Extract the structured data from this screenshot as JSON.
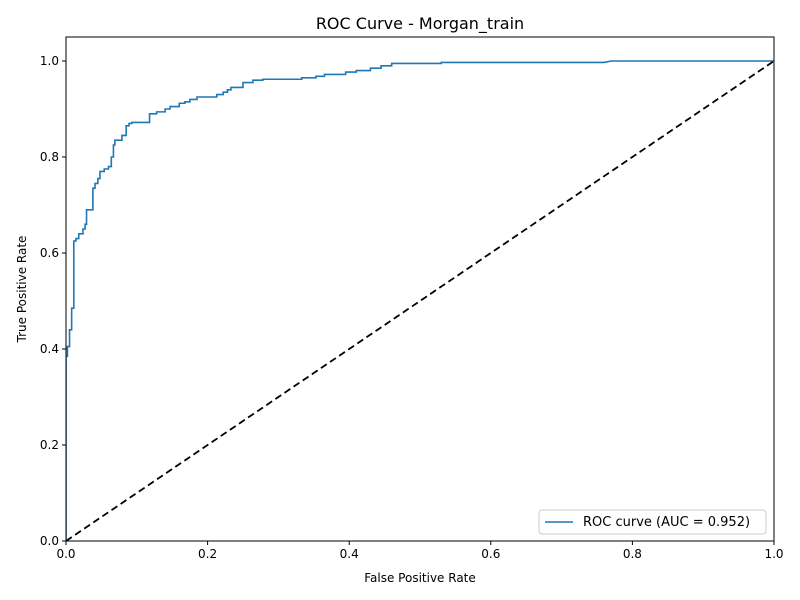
{
  "chart_data": {
    "type": "line",
    "title": "ROC Curve - Morgan_train",
    "xlabel": "False Positive Rate",
    "ylabel": "True Positive Rate",
    "xlim": [
      0.0,
      1.0
    ],
    "ylim": [
      0.0,
      1.05
    ],
    "x_ticks": [
      "0.0",
      "0.2",
      "0.4",
      "0.6",
      "0.8",
      "1.0"
    ],
    "y_ticks": [
      "0.0",
      "0.2",
      "0.4",
      "0.6",
      "0.8",
      "1.0"
    ],
    "grid": false,
    "legend": {
      "placement": "lower-right",
      "entries": [
        "ROC curve (AUC = 0.952)"
      ]
    },
    "series": [
      {
        "name": "ROC curve (AUC = 0.952)",
        "color": "#1f77b4",
        "style": "solid",
        "x": [
          0.0,
          0.0,
          0.002,
          0.002,
          0.005,
          0.005,
          0.008,
          0.008,
          0.011,
          0.011,
          0.014,
          0.014,
          0.018,
          0.018,
          0.024,
          0.024,
          0.027,
          0.027,
          0.029,
          0.029,
          0.038,
          0.038,
          0.041,
          0.041,
          0.045,
          0.045,
          0.048,
          0.048,
          0.054,
          0.054,
          0.06,
          0.06,
          0.064,
          0.064,
          0.067,
          0.067,
          0.069,
          0.069,
          0.079,
          0.079,
          0.085,
          0.085,
          0.089,
          0.089,
          0.093,
          0.093,
          0.118,
          0.118,
          0.128,
          0.128,
          0.14,
          0.14,
          0.147,
          0.147,
          0.16,
          0.16,
          0.168,
          0.168,
          0.175,
          0.175,
          0.185,
          0.185,
          0.213,
          0.213,
          0.222,
          0.222,
          0.228,
          0.228,
          0.233,
          0.233,
          0.25,
          0.25,
          0.264,
          0.264,
          0.278,
          0.278,
          0.333,
          0.333,
          0.353,
          0.353,
          0.365,
          0.365,
          0.395,
          0.395,
          0.41,
          0.41,
          0.43,
          0.43,
          0.445,
          0.445,
          0.46,
          0.46,
          0.53,
          0.53,
          0.76,
          0.77,
          1.0
        ],
        "y": [
          0.0,
          0.385,
          0.385,
          0.405,
          0.405,
          0.44,
          0.44,
          0.485,
          0.485,
          0.625,
          0.625,
          0.63,
          0.63,
          0.64,
          0.64,
          0.65,
          0.65,
          0.66,
          0.66,
          0.69,
          0.69,
          0.735,
          0.735,
          0.745,
          0.745,
          0.755,
          0.755,
          0.77,
          0.77,
          0.775,
          0.775,
          0.78,
          0.78,
          0.8,
          0.8,
          0.825,
          0.825,
          0.835,
          0.835,
          0.845,
          0.845,
          0.865,
          0.865,
          0.87,
          0.87,
          0.872,
          0.872,
          0.89,
          0.89,
          0.894,
          0.894,
          0.9,
          0.9,
          0.905,
          0.905,
          0.912,
          0.912,
          0.915,
          0.915,
          0.92,
          0.92,
          0.925,
          0.925,
          0.93,
          0.93,
          0.935,
          0.935,
          0.94,
          0.94,
          0.945,
          0.945,
          0.955,
          0.955,
          0.96,
          0.96,
          0.962,
          0.962,
          0.965,
          0.965,
          0.968,
          0.968,
          0.972,
          0.972,
          0.977,
          0.977,
          0.98,
          0.98,
          0.985,
          0.985,
          0.99,
          0.99,
          0.995,
          0.995,
          0.997,
          0.997,
          1.0,
          1.0
        ]
      },
      {
        "color": "#000000",
        "style": "dashed",
        "x": [
          0.0,
          1.0
        ],
        "y": [
          0.0,
          1.0
        ]
      }
    ]
  }
}
